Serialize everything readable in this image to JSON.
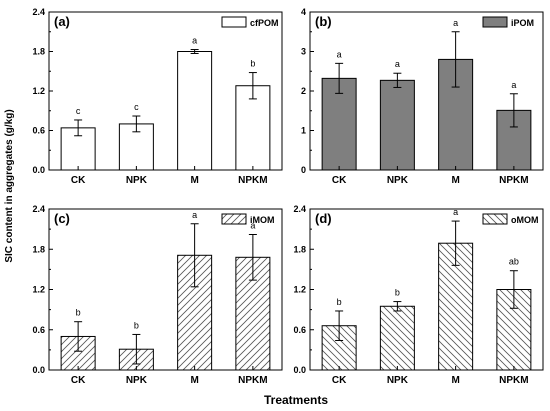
{
  "figure": {
    "ylabel": "SIC content in aggregates (g/kg)",
    "xlabel": "Treatments"
  },
  "chart_data": [
    {
      "type": "bar",
      "panel_label": "(a)",
      "legend": "cfPOM",
      "fill_style": "white",
      "categories": [
        "CK",
        "NPK",
        "M",
        "NPKM"
      ],
      "values": [
        0.64,
        0.7,
        1.8,
        1.28
      ],
      "errors": [
        0.12,
        0.12,
        0.03,
        0.2
      ],
      "significance": [
        "c",
        "c",
        "a",
        "b"
      ],
      "ylim": [
        0,
        2.4
      ],
      "yticks": [
        "0.0",
        "0.6",
        "1.2",
        "1.8",
        "2.4"
      ],
      "ytick_values": [
        0,
        0.6,
        1.2,
        1.8,
        2.4
      ],
      "legend_position": "top-right"
    },
    {
      "type": "bar",
      "panel_label": "(b)",
      "legend": "iPOM",
      "fill_style": "gray",
      "categories": [
        "CK",
        "NPK",
        "M",
        "NPKM"
      ],
      "values": [
        2.32,
        2.27,
        2.8,
        1.51
      ],
      "errors": [
        0.38,
        0.18,
        0.7,
        0.42
      ],
      "significance": [
        "a",
        "a",
        "a",
        "a"
      ],
      "ylim": [
        0,
        4
      ],
      "yticks": [
        "0",
        "1",
        "2",
        "3",
        "4"
      ],
      "ytick_values": [
        0,
        1,
        2,
        3,
        4
      ],
      "legend_position": "top-right"
    },
    {
      "type": "bar",
      "panel_label": "(c)",
      "legend": "iMOM",
      "fill_style": "hatch-forward",
      "categories": [
        "CK",
        "NPK",
        "M",
        "NPKM"
      ],
      "values": [
        0.5,
        0.31,
        1.71,
        1.68
      ],
      "errors": [
        0.22,
        0.22,
        0.47,
        0.34
      ],
      "significance": [
        "b",
        "b",
        "a",
        "a"
      ],
      "ylim": [
        0,
        2.4
      ],
      "yticks": [
        "0.0",
        "0.6",
        "1.2",
        "1.8",
        "2.4"
      ],
      "ytick_values": [
        0,
        0.6,
        1.2,
        1.8,
        2.4
      ],
      "legend_position": "top-right"
    },
    {
      "type": "bar",
      "panel_label": "(d)",
      "legend": "oMOM",
      "fill_style": "hatch-back",
      "categories": [
        "CK",
        "NPK",
        "M",
        "NPKM"
      ],
      "values": [
        0.66,
        0.95,
        1.89,
        1.2
      ],
      "errors": [
        0.22,
        0.07,
        0.33,
        0.28
      ],
      "significance": [
        "b",
        "b",
        "a",
        "ab"
      ],
      "ylim": [
        0,
        2.4
      ],
      "yticks": [
        "0.0",
        "0.6",
        "1.2",
        "1.8",
        "2.4"
      ],
      "ytick_values": [
        0,
        0.6,
        1.2,
        1.8,
        2.4
      ],
      "legend_position": "top-right"
    }
  ],
  "colors": {
    "axis": "#000000",
    "bar_edge": "#000000",
    "white_fill": "#ffffff",
    "gray_fill": "#7f7f7f",
    "hatch": "#555555"
  }
}
